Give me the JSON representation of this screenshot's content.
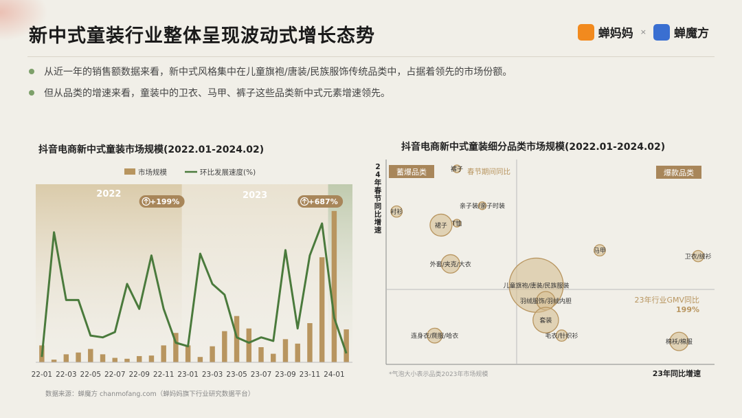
{
  "page": {
    "title": "新中式童装行业整体呈现波动式增长态势",
    "logo1": "蝉妈妈",
    "logo_sep": "×",
    "logo2": "蝉魔方",
    "bullets": [
      "从近一年的销售额数据来看，新中式风格集中在儿童旗袍/唐装/民族服饰传统品类中，占据着领先的市场份额。",
      "但从品类的增速来看，童装中的卫衣、马甲、裤子这些品类新中式元素增速领先。"
    ],
    "source": "数据来源：蝉魔方 chanmofang.com（蝉妈妈旗下行业研究数据平台）",
    "accent_colors": {
      "bar": "#b8955f",
      "line": "#4a7a3c",
      "badge": "#a8865a"
    }
  },
  "chart_data": [
    {
      "type": "bar",
      "title": "抖音电商新中式童装市场规模(2022.01-2024.02)",
      "legend": [
        "市场规模",
        "环比发展速度(%)"
      ],
      "periods": [
        "2022",
        "2023"
      ],
      "badges": [
        "+199%",
        "+687%"
      ],
      "x_tick_labels": [
        "22-01",
        "22-03",
        "22-05",
        "22-07",
        "22-09",
        "22-11",
        "23-01",
        "23-03",
        "23-05",
        "23-07",
        "23-09",
        "23-11",
        "24-01"
      ],
      "categories": [
        "22-01",
        "22-02",
        "22-03",
        "22-04",
        "22-05",
        "22-06",
        "22-07",
        "22-08",
        "22-09",
        "22-10",
        "22-11",
        "22-12",
        "23-01",
        "23-02",
        "23-03",
        "23-04",
        "23-05",
        "23-06",
        "23-07",
        "23-08",
        "23-09",
        "23-10",
        "23-11",
        "23-12",
        "24-01",
        "24-02"
      ],
      "series": [
        {
          "name": "市场规模",
          "type": "bar",
          "values": [
            9.5,
            1.5,
            4.5,
            5.5,
            7.5,
            4.5,
            2.5,
            2.0,
            3.5,
            3.8,
            9.5,
            16.5,
            9.5,
            3.0,
            9.0,
            17.5,
            26.0,
            19.0,
            8.5,
            4.8,
            13.0,
            10.5,
            22.0,
            59.0,
            85.0,
            18.5
          ]
        },
        {
          "name": "环比发展速度(%)",
          "type": "line",
          "values": [
            3,
            73,
            35,
            35,
            15,
            14,
            17,
            44,
            30,
            60,
            30,
            11,
            9,
            61,
            44,
            38,
            14,
            11,
            14,
            12,
            63,
            19,
            60,
            78,
            25,
            5
          ]
        }
      ],
      "ylim": [
        0,
        100
      ]
    },
    {
      "type": "scatter",
      "title": "抖音电商新中式童装细分品类市场规模(2022.01-2024.02)",
      "xlabel": "23年同比增速",
      "ylabel": "24年春节同比增速",
      "note": "*气泡大小表示品类2023年市场规模",
      "quadrants": [
        "蓄爆品类",
        "爆款品类"
      ],
      "reference_labels": {
        "y": "春节期间同比",
        "x": "23年行业GMV同比",
        "x_value": "199%"
      },
      "points": [
        {
          "label": "裤子",
          "x": 0.21,
          "y": 0.98,
          "size": 1
        },
        {
          "label": "衬衫",
          "x": 0.02,
          "y": 0.76,
          "size": 2
        },
        {
          "label": "亲子装/亲子时装",
          "x": 0.29,
          "y": 0.79,
          "size": 1
        },
        {
          "label": "裙子",
          "x": 0.16,
          "y": 0.69,
          "size": 5
        },
        {
          "label": "T恤",
          "x": 0.21,
          "y": 0.7,
          "size": 1
        },
        {
          "label": "马甲",
          "x": 0.66,
          "y": 0.56,
          "size": 2
        },
        {
          "label": "卫衣/绒衫",
          "x": 0.97,
          "y": 0.53,
          "size": 2
        },
        {
          "label": "外套/夹克/大衣",
          "x": 0.19,
          "y": 0.49,
          "size": 4
        },
        {
          "label": "儿童旗袍/唐装/民族服装",
          "x": 0.46,
          "y": 0.38,
          "size": 14
        },
        {
          "label": "羽绒服饰/羽绒内胆",
          "x": 0.49,
          "y": 0.3,
          "size": 4
        },
        {
          "label": "套装",
          "x": 0.49,
          "y": 0.2,
          "size": 6
        },
        {
          "label": "毛衣/针织衫",
          "x": 0.54,
          "y": 0.12,
          "size": 2
        },
        {
          "label": "连身衣/爬服/哈衣",
          "x": 0.14,
          "y": 0.12,
          "size": 3
        },
        {
          "label": "棉袄/棉服",
          "x": 0.91,
          "y": 0.09,
          "size": 4
        }
      ]
    }
  ]
}
